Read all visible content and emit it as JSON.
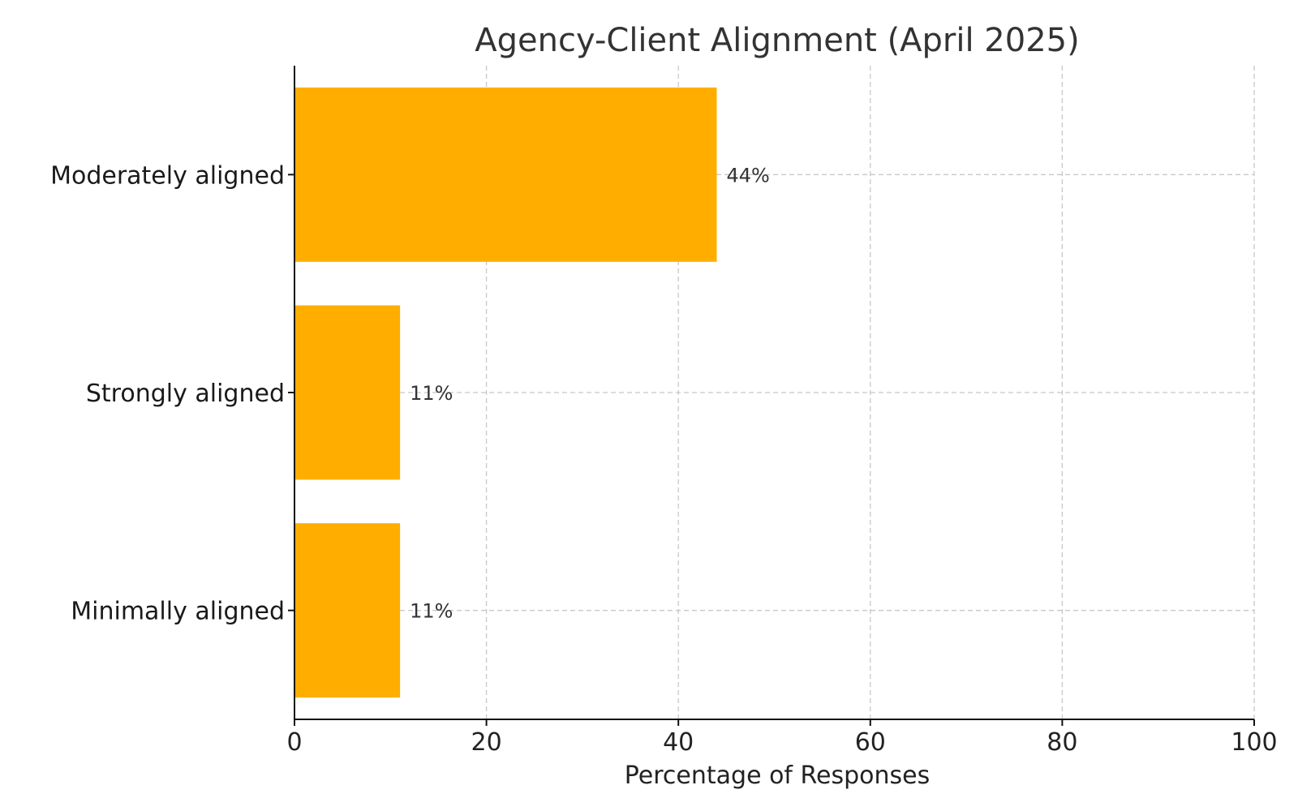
{
  "chart_data": {
    "type": "bar",
    "orientation": "horizontal",
    "title": "Agency-Client Alignment (April 2025)",
    "xlabel": "Percentage of Responses",
    "ylabel": "",
    "categories": [
      "Moderately aligned",
      "Strongly aligned",
      "Minimally aligned"
    ],
    "values": [
      44,
      11,
      11
    ],
    "data_labels": [
      "44%",
      "11%",
      "11%"
    ],
    "xlim": [
      0,
      100
    ],
    "x_ticks": [
      0,
      20,
      40,
      60,
      80,
      100
    ],
    "x_tick_labels": [
      "0",
      "20",
      "40",
      "60",
      "80",
      "100"
    ],
    "grid": true,
    "grid_style": "dashed",
    "bar_color": "#FFAE00"
  }
}
